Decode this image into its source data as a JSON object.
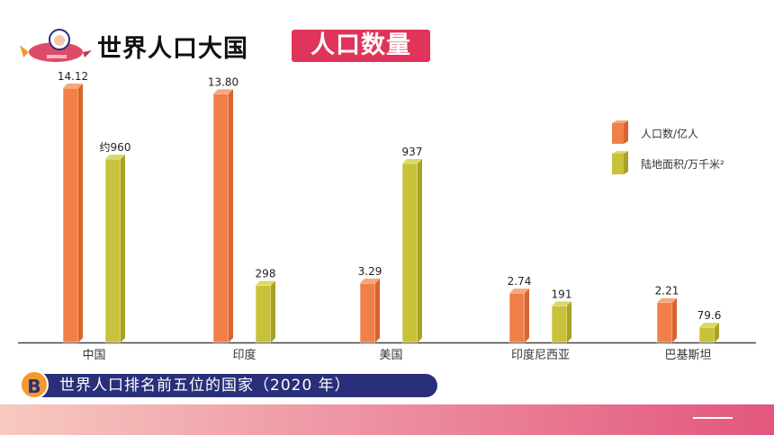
{
  "header": {
    "title": "世界人口大国",
    "subtitle": "人口数量"
  },
  "caption": {
    "badge": "B",
    "text": "世界人口排名前五位的国家（2020 年）"
  },
  "colors": {
    "orange": "#f07f48",
    "orange_light": "#f6a77b",
    "olive": "#c8c23a",
    "olive_light": "#dcd868",
    "caption_bar": "#2a2f7a",
    "badge": "#f39a2d",
    "subtitle_bg": "#e0345a"
  },
  "icons": [
    "rocket-icon"
  ],
  "chart_data": {
    "type": "bar",
    "categories": [
      "中国",
      "印度",
      "美国",
      "印度尼西亚",
      "巴基斯坦"
    ],
    "series": [
      {
        "name": "人口数/亿人",
        "values": [
          14.12,
          13.8,
          3.29,
          2.74,
          2.21
        ],
        "labels": [
          "14.12",
          "13.80",
          "3.29",
          "2.74",
          "2.21"
        ]
      },
      {
        "name": "陆地面积/万千米²",
        "values": [
          960,
          298,
          937,
          191,
          79.6
        ],
        "labels": [
          "约960",
          "298",
          "937",
          "191",
          "79.6"
        ]
      }
    ],
    "legend_position": "top-right",
    "grid": false
  }
}
